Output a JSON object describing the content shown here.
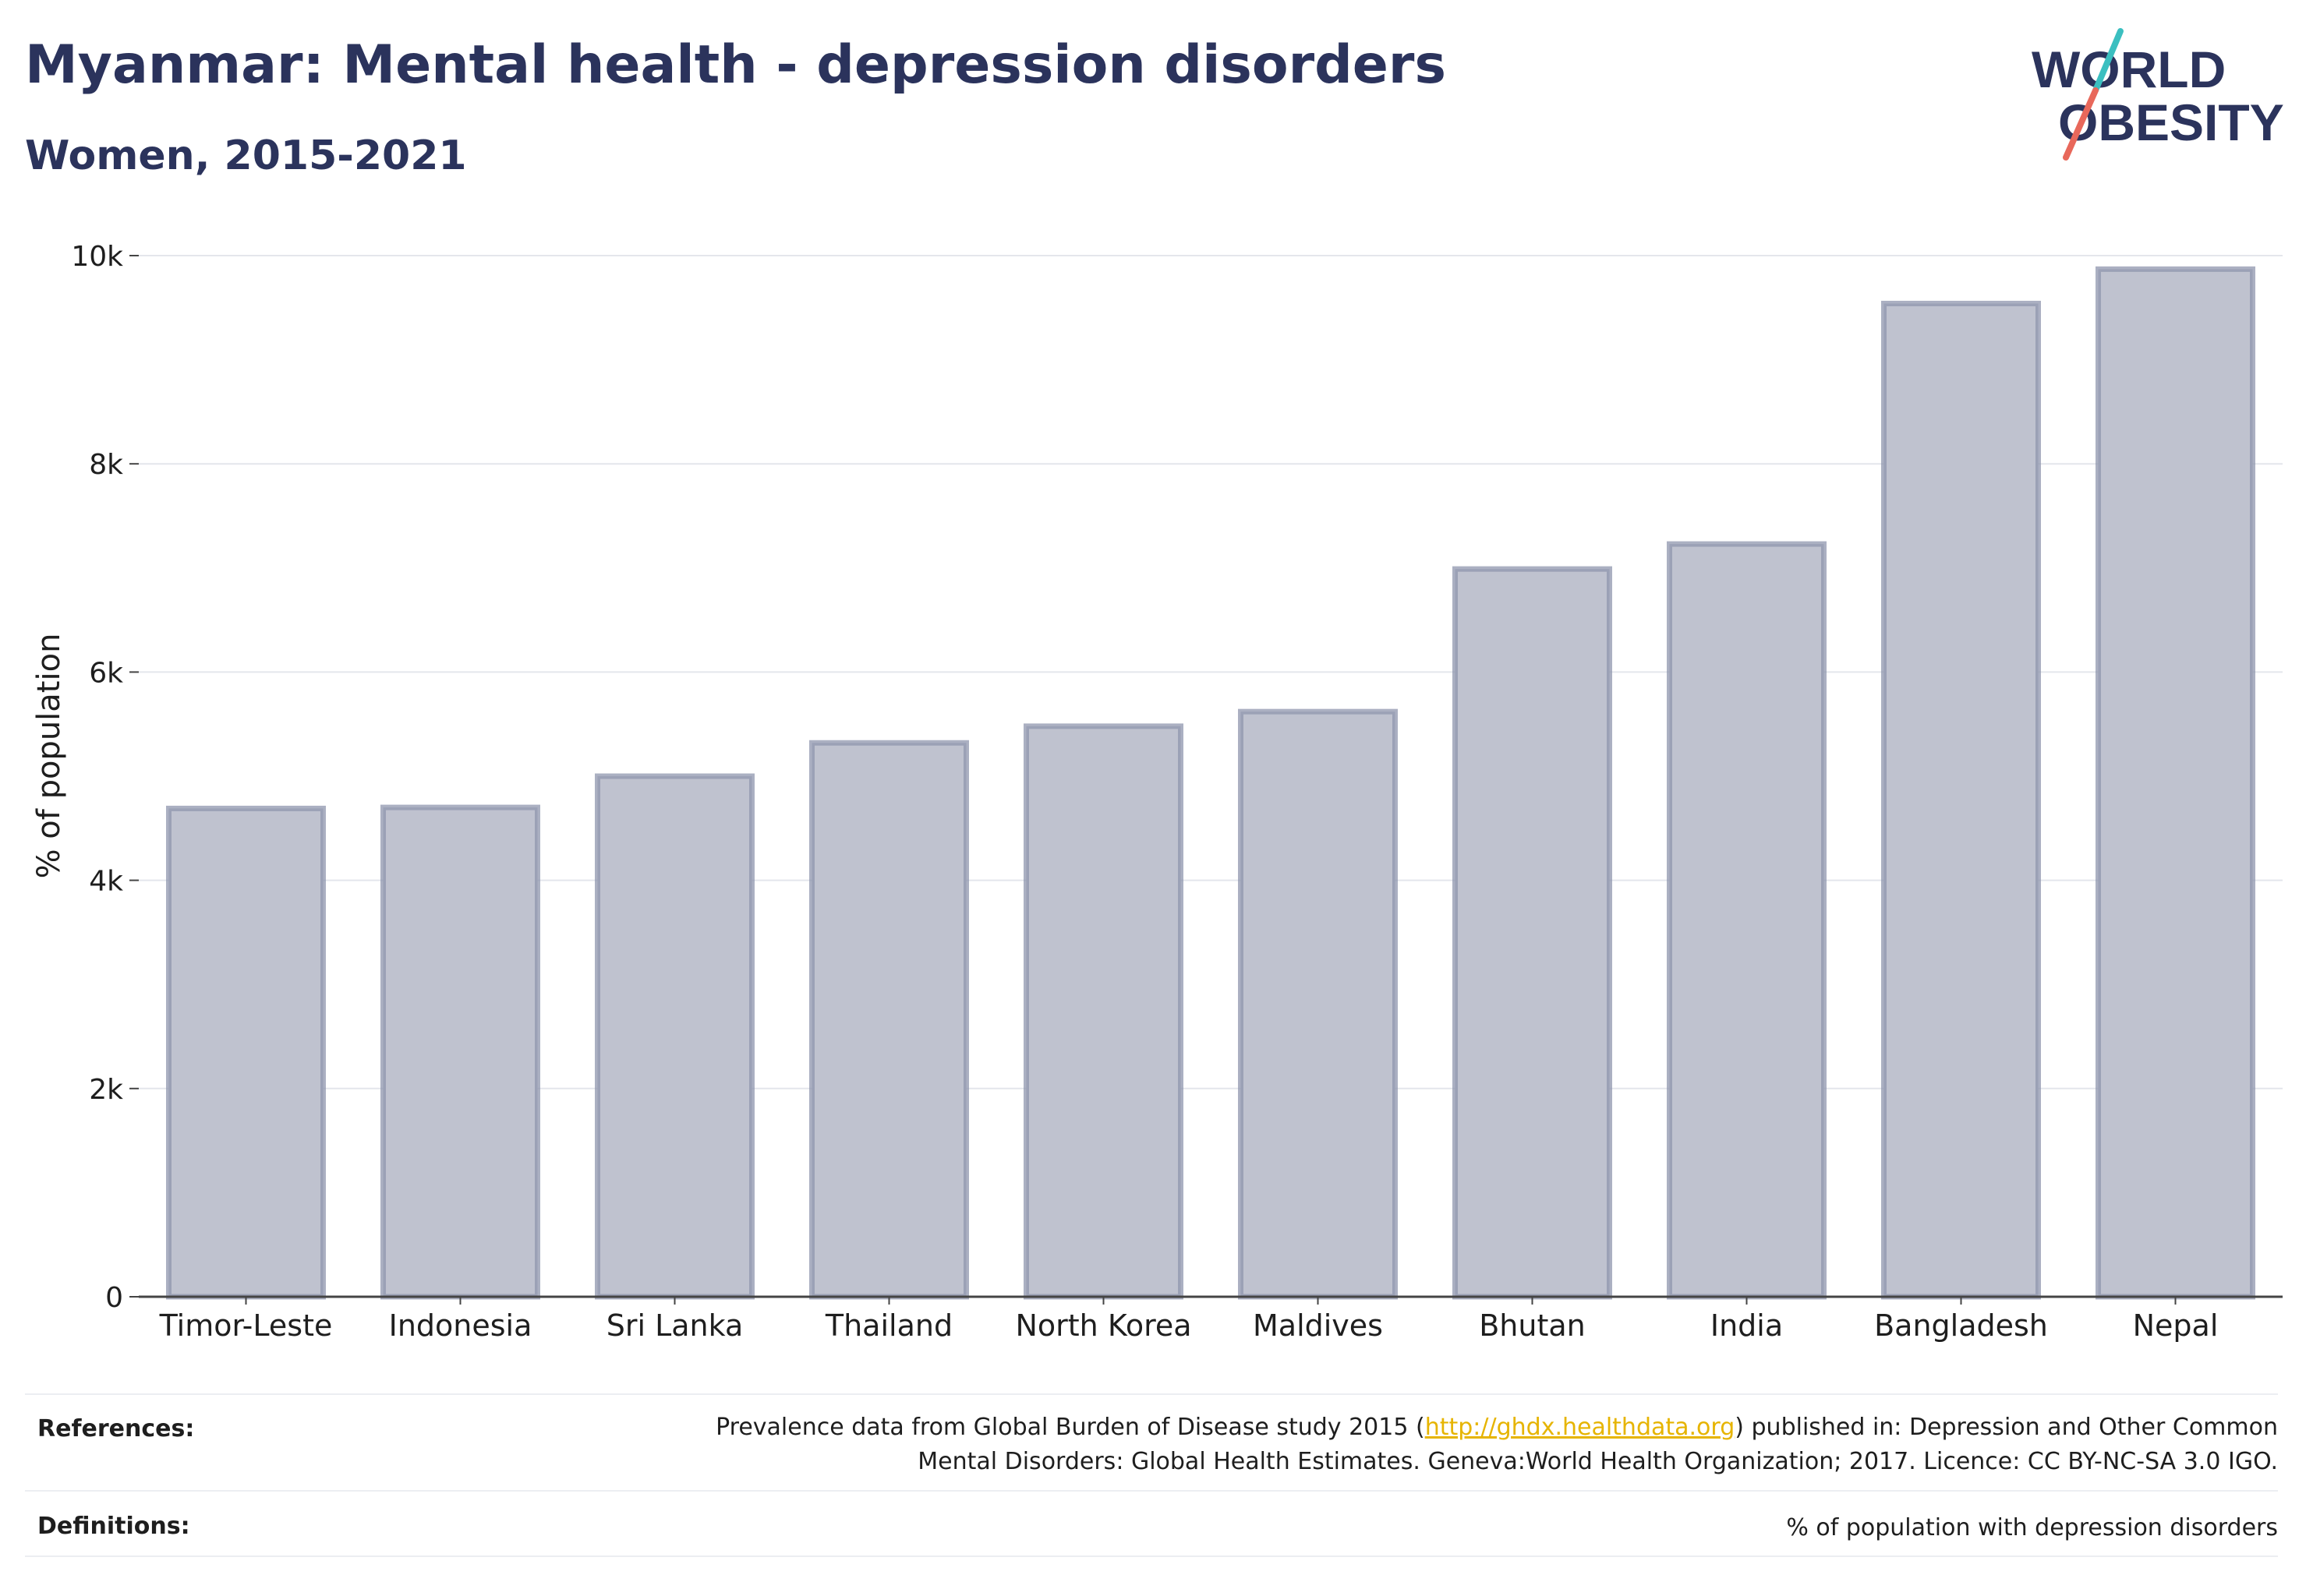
{
  "header": {
    "title": "Myanmar: Mental health - depression disorders",
    "subtitle": "Women, 2015-2021"
  },
  "logo": {
    "line1": "WORLD",
    "line2": "OBESITY"
  },
  "chart_data": {
    "type": "bar",
    "title": "Myanmar: Mental health - depression disorders",
    "subtitle": "Women, 2015-2021",
    "ylabel": "% of population",
    "xlabel": "",
    "categories": [
      "Timor-Leste",
      "Indonesia",
      "Sri Lanka",
      "Thailand",
      "North Korea",
      "Maldives",
      "Bhutan",
      "India",
      "Bangladesh",
      "Nepal"
    ],
    "values": [
      4690,
      4700,
      5000,
      5320,
      5480,
      5620,
      6990,
      7230,
      9540,
      9870
    ],
    "ylim": [
      0,
      10000
    ],
    "yticks": [
      0,
      2000,
      4000,
      6000,
      8000,
      10000
    ],
    "ytick_labels": [
      "0",
      "2k",
      "4k",
      "6k",
      "8k",
      "10k"
    ],
    "grid": true,
    "bar_color": "#2b335c"
  },
  "footer": {
    "references_label": "References:",
    "references_line1_pre": "Prevalence data from Global Burden of Disease study 2015 (",
    "references_link": "http://ghdx.healthdata.org",
    "references_line1_post": ") published in: Depression and Other Common",
    "references_line2": "Mental Disorders: Global Health Estimates. Geneva:World Health Organization; 2017. Licence: CC BY-NC-SA 3.0 IGO.",
    "definitions_label": "Definitions:",
    "definitions_text": "% of population with depression disorders"
  },
  "colors": {
    "title": "#2b335c",
    "bar_fill": "#bfc2cf",
    "bar_stroke": "#8f95ad",
    "link": "#e6b400",
    "logo_teal": "#3bbfc0",
    "logo_coral": "#e8685b"
  }
}
